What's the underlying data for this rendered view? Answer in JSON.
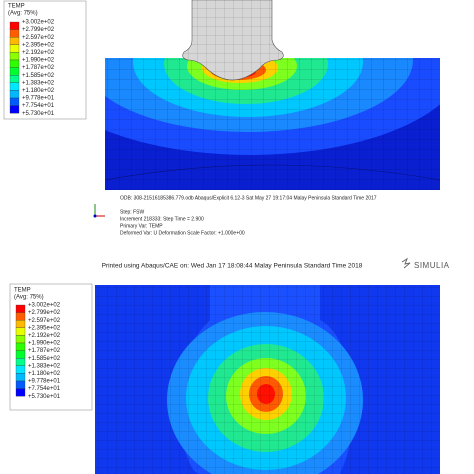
{
  "top": {
    "legend": {
      "title": "TEMP",
      "subtitle": "(Avg: 75%)",
      "values": [
        "+3.002e+02",
        "+2.799e+02",
        "+2.597e+02",
        "+2.395e+02",
        "+2.192e+02",
        "+1.990e+02",
        "+1.787e+02",
        "+1.585e+02",
        "+1.383e+02",
        "+1.180e+02",
        "+9.778e+01",
        "+7.754e+01",
        "+5.730e+01"
      ]
    },
    "odb_line": "ODB: 308-21516185386.779.odb    Abaqus/Explicit 6.12-3    Sat May 27 19:17:04 Malay Peninsula Standard Time 2017",
    "step": "Step: FSW",
    "increment": "Increment    218333: Step Time =    2.900",
    "primary_var": "Primary Var: TEMP",
    "deformed_var": "Deformed Var: U   Deformation Scale Factor: +1.000e+00"
  },
  "footer": {
    "printed": "Printed using Abaqus/CAE on: Wed Jan 17 18:08:44 Malay Peninsula Standard Time 2018",
    "brand": "SIMULIA"
  },
  "bottom": {
    "legend": {
      "title": "TEMP",
      "subtitle": "(Avg: 75%)",
      "values": [
        "+3.002e+02",
        "+2.799e+02",
        "+2.597e+02",
        "+2.395e+02",
        "+2.192e+02",
        "+1.990e+02",
        "+1.787e+02",
        "+1.585e+02",
        "+1.383e+02",
        "+1.180e+02",
        "+9.778e+01",
        "+7.754e+01",
        "+5.730e+01"
      ]
    }
  }
}
